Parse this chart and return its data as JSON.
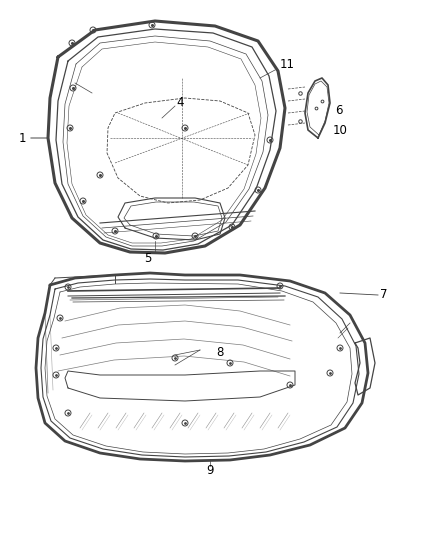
{
  "background_color": "#ffffff",
  "fig_width": 4.38,
  "fig_height": 5.33,
  "dpi": 100,
  "line_color": "#444444",
  "text_color": "#000000",
  "callout_fontsize": 8.5
}
